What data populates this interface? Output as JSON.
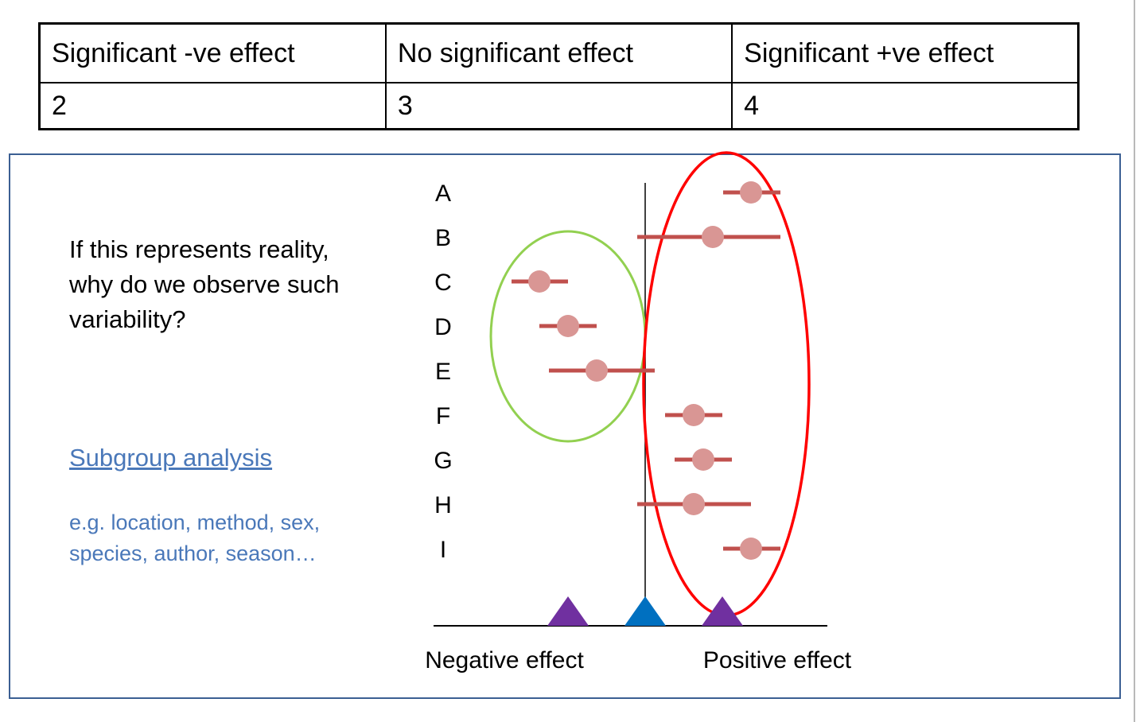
{
  "table": {
    "headers": [
      "Significant -ve effect",
      "No significant effect",
      "Significant +ve effect"
    ],
    "values": [
      "2",
      "3",
      "4"
    ]
  },
  "question": "If this represents reality, why do we observe such variability?",
  "link": {
    "label": "Subgroup analysis"
  },
  "examples": "e.g. location, method, sex, species, author, season…",
  "colors": {
    "ci_line": "#c0504d",
    "point": "#d99694",
    "negative_group_ellipse": "#92d050",
    "positive_group_ellipse": "#ff0000",
    "subgroup_marker": "#7030a0",
    "overall_marker": "#0070c0",
    "link_text": "#4a78b9",
    "panel_border": "#3b5f93"
  },
  "chart_data": {
    "type": "scatter",
    "subtype": "forest-plot",
    "title": "",
    "xlabel_left": "Negative effect",
    "xlabel_right": "Positive effect",
    "x_range": [
      -2.65,
      2.3
    ],
    "null_line_x": 0,
    "studies": [
      {
        "label": "A",
        "estimate": 1.33,
        "lower": 0.98,
        "upper": 1.7
      },
      {
        "label": "B",
        "estimate": 0.85,
        "lower": -0.1,
        "upper": 1.7
      },
      {
        "label": "C",
        "estimate": -1.33,
        "lower": -1.68,
        "upper": -0.97
      },
      {
        "label": "D",
        "estimate": -0.97,
        "lower": -1.33,
        "upper": -0.61
      },
      {
        "label": "E",
        "estimate": -0.61,
        "lower": -1.21,
        "upper": 0.12
      },
      {
        "label": "F",
        "estimate": 0.61,
        "lower": 0.25,
        "upper": 0.97
      },
      {
        "label": "G",
        "estimate": 0.73,
        "lower": 0.37,
        "upper": 1.09
      },
      {
        "label": "H",
        "estimate": 0.61,
        "lower": -0.1,
        "upper": 1.33
      },
      {
        "label": "I",
        "estimate": 1.33,
        "lower": 0.98,
        "upper": 1.7
      }
    ],
    "markers": [
      {
        "kind": "subgroup-negative",
        "x": -0.97
      },
      {
        "kind": "overall",
        "x": 0
      },
      {
        "kind": "subgroup-positive",
        "x": 0.97
      }
    ],
    "groups": [
      {
        "kind": "negative",
        "members": [
          "C",
          "D",
          "E"
        ]
      },
      {
        "kind": "positive",
        "members": [
          "A",
          "B",
          "F",
          "G",
          "H",
          "I"
        ]
      }
    ]
  }
}
